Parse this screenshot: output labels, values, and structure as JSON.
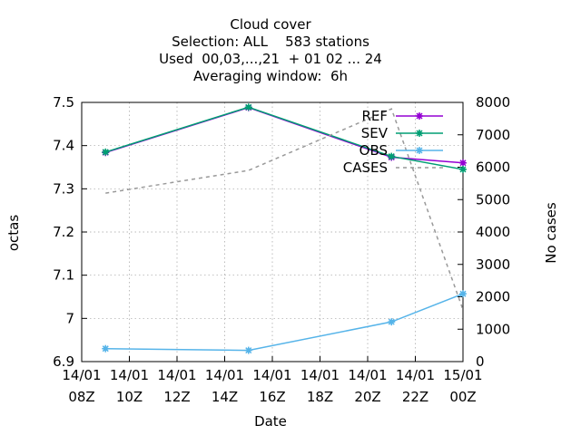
{
  "chart_data": {
    "type": "line",
    "title_lines": [
      "Cloud cover",
      "Selection: ALL    583 stations",
      "Used  00,03,...,21  + 01 02 ... 24",
      "Averaging window:  6h"
    ],
    "xlabel": "Date",
    "ylabel": "octas",
    "y2label": "No cases",
    "x_ticks": [
      {
        "hour": 8,
        "line1": "14/01",
        "line2": "08Z"
      },
      {
        "hour": 10,
        "line1": "14/01",
        "line2": "10Z"
      },
      {
        "hour": 12,
        "line1": "14/01",
        "line2": "12Z"
      },
      {
        "hour": 14,
        "line1": "14/01",
        "line2": "14Z"
      },
      {
        "hour": 16,
        "line1": "14/01",
        "line2": "16Z"
      },
      {
        "hour": 18,
        "line1": "14/01",
        "line2": "18Z"
      },
      {
        "hour": 20,
        "line1": "14/01",
        "line2": "20Z"
      },
      {
        "hour": 22,
        "line1": "14/01",
        "line2": "22Z"
      },
      {
        "hour": 24,
        "line1": "15/01",
        "line2": "00Z"
      }
    ],
    "xlim": [
      8,
      24
    ],
    "ylim": [
      6.9,
      7.5
    ],
    "y_ticks": [
      "6.9",
      "7",
      "7.1",
      "7.2",
      "7.3",
      "7.4",
      "7.5"
    ],
    "y2lim": [
      0,
      8000
    ],
    "y2_ticks": [
      "0",
      "1000",
      "2000",
      "3000",
      "4000",
      "5000",
      "6000",
      "7000",
      "8000"
    ],
    "grid": true,
    "legend_position": "top-right",
    "series": [
      {
        "name": "REF",
        "axis": "y",
        "color": "#9400d3",
        "marker": true,
        "dashed": false,
        "x": [
          9,
          15,
          21,
          24
        ],
        "y": [
          7.384,
          7.488,
          7.373,
          7.36
        ]
      },
      {
        "name": "SEV",
        "axis": "y",
        "color": "#009e73",
        "marker": true,
        "dashed": false,
        "x": [
          9,
          15,
          21,
          24
        ],
        "y": [
          7.385,
          7.489,
          7.375,
          7.345
        ]
      },
      {
        "name": "OBS",
        "axis": "y",
        "color": "#56b4e9",
        "marker": true,
        "dashed": false,
        "x": [
          9,
          15,
          21,
          24
        ],
        "y": [
          6.93,
          6.926,
          6.992,
          7.057
        ]
      },
      {
        "name": "CASES",
        "axis": "y2",
        "color": "#999999",
        "marker": false,
        "dashed": true,
        "x": [
          9,
          15,
          21,
          24
        ],
        "y": [
          5200,
          5900,
          7800,
          1600
        ]
      }
    ]
  }
}
